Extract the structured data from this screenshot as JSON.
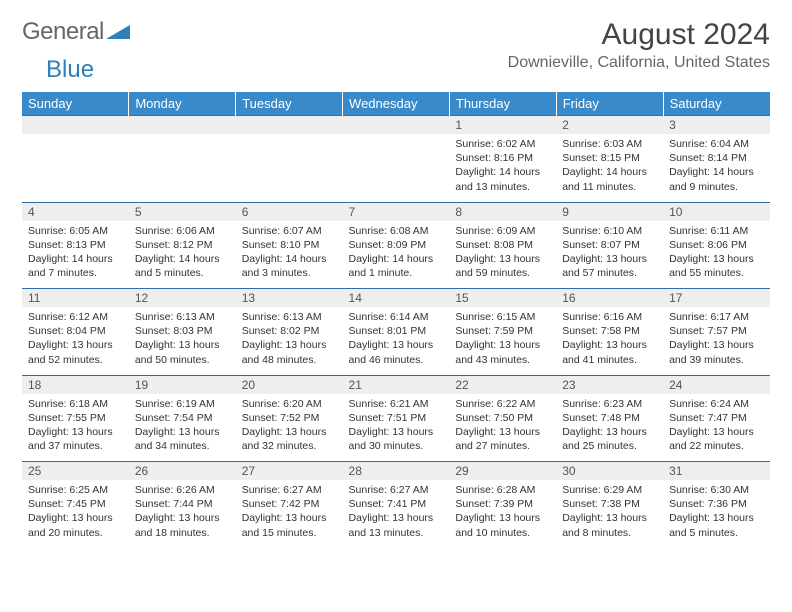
{
  "brand": {
    "part1": "General",
    "part2": "Blue"
  },
  "title": "August 2024",
  "location": "Downieville, California, United States",
  "colors": {
    "header_bg": "#3a89c9",
    "header_text": "#ffffff",
    "daynum_bg": "#eeeeee",
    "row_border": "#2f6fa3",
    "text": "#333333",
    "title_text": "#444444",
    "subtitle_text": "#666666",
    "logo_blue": "#2f7fb9"
  },
  "weekdays": [
    "Sunday",
    "Monday",
    "Tuesday",
    "Wednesday",
    "Thursday",
    "Friday",
    "Saturday"
  ],
  "weeks": [
    {
      "nums": [
        "",
        "",
        "",
        "",
        "1",
        "2",
        "3"
      ],
      "cells": [
        {
          "sunrise": "",
          "sunset": "",
          "daylight1": "",
          "daylight2": ""
        },
        {
          "sunrise": "",
          "sunset": "",
          "daylight1": "",
          "daylight2": ""
        },
        {
          "sunrise": "",
          "sunset": "",
          "daylight1": "",
          "daylight2": ""
        },
        {
          "sunrise": "",
          "sunset": "",
          "daylight1": "",
          "daylight2": ""
        },
        {
          "sunrise": "Sunrise: 6:02 AM",
          "sunset": "Sunset: 8:16 PM",
          "daylight1": "Daylight: 14 hours",
          "daylight2": "and 13 minutes."
        },
        {
          "sunrise": "Sunrise: 6:03 AM",
          "sunset": "Sunset: 8:15 PM",
          "daylight1": "Daylight: 14 hours",
          "daylight2": "and 11 minutes."
        },
        {
          "sunrise": "Sunrise: 6:04 AM",
          "sunset": "Sunset: 8:14 PM",
          "daylight1": "Daylight: 14 hours",
          "daylight2": "and 9 minutes."
        }
      ]
    },
    {
      "nums": [
        "4",
        "5",
        "6",
        "7",
        "8",
        "9",
        "10"
      ],
      "cells": [
        {
          "sunrise": "Sunrise: 6:05 AM",
          "sunset": "Sunset: 8:13 PM",
          "daylight1": "Daylight: 14 hours",
          "daylight2": "and 7 minutes."
        },
        {
          "sunrise": "Sunrise: 6:06 AM",
          "sunset": "Sunset: 8:12 PM",
          "daylight1": "Daylight: 14 hours",
          "daylight2": "and 5 minutes."
        },
        {
          "sunrise": "Sunrise: 6:07 AM",
          "sunset": "Sunset: 8:10 PM",
          "daylight1": "Daylight: 14 hours",
          "daylight2": "and 3 minutes."
        },
        {
          "sunrise": "Sunrise: 6:08 AM",
          "sunset": "Sunset: 8:09 PM",
          "daylight1": "Daylight: 14 hours",
          "daylight2": "and 1 minute."
        },
        {
          "sunrise": "Sunrise: 6:09 AM",
          "sunset": "Sunset: 8:08 PM",
          "daylight1": "Daylight: 13 hours",
          "daylight2": "and 59 minutes."
        },
        {
          "sunrise": "Sunrise: 6:10 AM",
          "sunset": "Sunset: 8:07 PM",
          "daylight1": "Daylight: 13 hours",
          "daylight2": "and 57 minutes."
        },
        {
          "sunrise": "Sunrise: 6:11 AM",
          "sunset": "Sunset: 8:06 PM",
          "daylight1": "Daylight: 13 hours",
          "daylight2": "and 55 minutes."
        }
      ]
    },
    {
      "nums": [
        "11",
        "12",
        "13",
        "14",
        "15",
        "16",
        "17"
      ],
      "cells": [
        {
          "sunrise": "Sunrise: 6:12 AM",
          "sunset": "Sunset: 8:04 PM",
          "daylight1": "Daylight: 13 hours",
          "daylight2": "and 52 minutes."
        },
        {
          "sunrise": "Sunrise: 6:13 AM",
          "sunset": "Sunset: 8:03 PM",
          "daylight1": "Daylight: 13 hours",
          "daylight2": "and 50 minutes."
        },
        {
          "sunrise": "Sunrise: 6:13 AM",
          "sunset": "Sunset: 8:02 PM",
          "daylight1": "Daylight: 13 hours",
          "daylight2": "and 48 minutes."
        },
        {
          "sunrise": "Sunrise: 6:14 AM",
          "sunset": "Sunset: 8:01 PM",
          "daylight1": "Daylight: 13 hours",
          "daylight2": "and 46 minutes."
        },
        {
          "sunrise": "Sunrise: 6:15 AM",
          "sunset": "Sunset: 7:59 PM",
          "daylight1": "Daylight: 13 hours",
          "daylight2": "and 43 minutes."
        },
        {
          "sunrise": "Sunrise: 6:16 AM",
          "sunset": "Sunset: 7:58 PM",
          "daylight1": "Daylight: 13 hours",
          "daylight2": "and 41 minutes."
        },
        {
          "sunrise": "Sunrise: 6:17 AM",
          "sunset": "Sunset: 7:57 PM",
          "daylight1": "Daylight: 13 hours",
          "daylight2": "and 39 minutes."
        }
      ]
    },
    {
      "nums": [
        "18",
        "19",
        "20",
        "21",
        "22",
        "23",
        "24"
      ],
      "cells": [
        {
          "sunrise": "Sunrise: 6:18 AM",
          "sunset": "Sunset: 7:55 PM",
          "daylight1": "Daylight: 13 hours",
          "daylight2": "and 37 minutes."
        },
        {
          "sunrise": "Sunrise: 6:19 AM",
          "sunset": "Sunset: 7:54 PM",
          "daylight1": "Daylight: 13 hours",
          "daylight2": "and 34 minutes."
        },
        {
          "sunrise": "Sunrise: 6:20 AM",
          "sunset": "Sunset: 7:52 PM",
          "daylight1": "Daylight: 13 hours",
          "daylight2": "and 32 minutes."
        },
        {
          "sunrise": "Sunrise: 6:21 AM",
          "sunset": "Sunset: 7:51 PM",
          "daylight1": "Daylight: 13 hours",
          "daylight2": "and 30 minutes."
        },
        {
          "sunrise": "Sunrise: 6:22 AM",
          "sunset": "Sunset: 7:50 PM",
          "daylight1": "Daylight: 13 hours",
          "daylight2": "and 27 minutes."
        },
        {
          "sunrise": "Sunrise: 6:23 AM",
          "sunset": "Sunset: 7:48 PM",
          "daylight1": "Daylight: 13 hours",
          "daylight2": "and 25 minutes."
        },
        {
          "sunrise": "Sunrise: 6:24 AM",
          "sunset": "Sunset: 7:47 PM",
          "daylight1": "Daylight: 13 hours",
          "daylight2": "and 22 minutes."
        }
      ]
    },
    {
      "nums": [
        "25",
        "26",
        "27",
        "28",
        "29",
        "30",
        "31"
      ],
      "cells": [
        {
          "sunrise": "Sunrise: 6:25 AM",
          "sunset": "Sunset: 7:45 PM",
          "daylight1": "Daylight: 13 hours",
          "daylight2": "and 20 minutes."
        },
        {
          "sunrise": "Sunrise: 6:26 AM",
          "sunset": "Sunset: 7:44 PM",
          "daylight1": "Daylight: 13 hours",
          "daylight2": "and 18 minutes."
        },
        {
          "sunrise": "Sunrise: 6:27 AM",
          "sunset": "Sunset: 7:42 PM",
          "daylight1": "Daylight: 13 hours",
          "daylight2": "and 15 minutes."
        },
        {
          "sunrise": "Sunrise: 6:27 AM",
          "sunset": "Sunset: 7:41 PM",
          "daylight1": "Daylight: 13 hours",
          "daylight2": "and 13 minutes."
        },
        {
          "sunrise": "Sunrise: 6:28 AM",
          "sunset": "Sunset: 7:39 PM",
          "daylight1": "Daylight: 13 hours",
          "daylight2": "and 10 minutes."
        },
        {
          "sunrise": "Sunrise: 6:29 AM",
          "sunset": "Sunset: 7:38 PM",
          "daylight1": "Daylight: 13 hours",
          "daylight2": "and 8 minutes."
        },
        {
          "sunrise": "Sunrise: 6:30 AM",
          "sunset": "Sunset: 7:36 PM",
          "daylight1": "Daylight: 13 hours",
          "daylight2": "and 5 minutes."
        }
      ]
    }
  ]
}
